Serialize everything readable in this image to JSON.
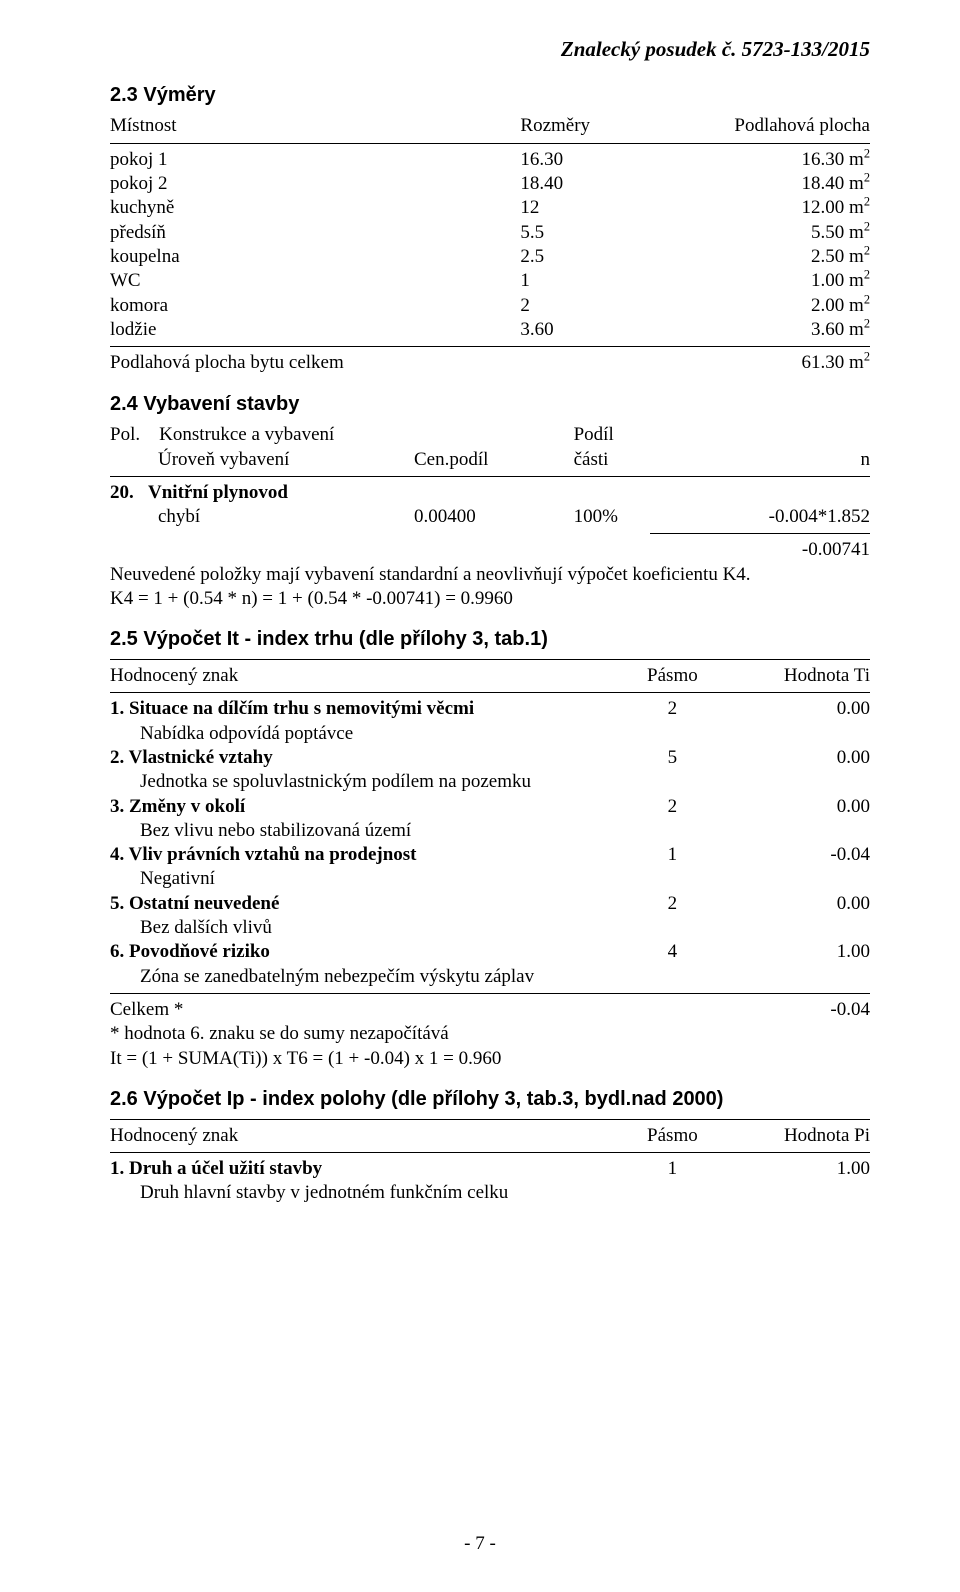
{
  "header": "Znalecký posudek č. 5723-133/2015",
  "s23": {
    "title": "2.3 Výměry",
    "columns": [
      "Místnost",
      "Rozměry",
      "Podlahová plocha"
    ],
    "rows": [
      {
        "name": "pokoj 1",
        "dim": "16.30",
        "area": "16.30 m",
        "exp": "2"
      },
      {
        "name": "pokoj 2",
        "dim": "18.40",
        "area": "18.40 m",
        "exp": "2"
      },
      {
        "name": "kuchyně",
        "dim": "12",
        "area": "12.00 m",
        "exp": "2"
      },
      {
        "name": "předsíň",
        "dim": "5.5",
        "area": "5.50 m",
        "exp": "2"
      },
      {
        "name": "koupelna",
        "dim": "2.5",
        "area": "2.50 m",
        "exp": "2"
      },
      {
        "name": "WC",
        "dim": "1",
        "area": "1.00 m",
        "exp": "2"
      },
      {
        "name": "komora",
        "dim": "2",
        "area": "2.00 m",
        "exp": "2"
      },
      {
        "name": "lodžie",
        "dim": "3.60",
        "area": "3.60 m",
        "exp": "2"
      }
    ],
    "total_label": "Podlahová plocha bytu celkem",
    "total_val": "61.30 m",
    "total_exp": "2"
  },
  "s24": {
    "title": "2.4 Vybavení stavby",
    "head_row1": {
      "c1": "Pol.",
      "c2": "Konstrukce a vybavení",
      "c3": "",
      "c4": "Podíl",
      "c5": ""
    },
    "head_row2": {
      "c1": "",
      "c2": "Úroveň vybavení",
      "c3": "Cen.podíl",
      "c4": "části",
      "c5": "n"
    },
    "item_no": "20.",
    "item_name": "Vnitřní plynovod",
    "item_sub": "chybí",
    "item_podil": "0.00400",
    "item_cast": "100%",
    "item_n": "-0.004*1.852",
    "sum_n": "-0.00741",
    "note1": "Neuvedené položky mají vybavení standardní a neovlivňují výpočet koeficientu K4.",
    "note2": "K4 = 1 + (0.54 * n) = 1 + (0.54 * -0.00741) = 0.9960"
  },
  "s25": {
    "title": "2.5 Výpočet It - index trhu (dle přílohy 3, tab.1)",
    "columns": [
      "Hodnocený znak",
      "Pásmo",
      "Hodnota Ti"
    ],
    "items": [
      {
        "num": "1.",
        "name": "Situace na dílčím trhu s nemovitými věcmi",
        "pasmo": "2",
        "val": "0.00",
        "sub": "Nabídka odpovídá poptávce"
      },
      {
        "num": "2.",
        "name": "Vlastnické vztahy",
        "pasmo": "5",
        "val": "0.00",
        "sub": "Jednotka se spoluvlastnickým podílem na pozemku"
      },
      {
        "num": "3.",
        "name": "Změny v okolí",
        "pasmo": "2",
        "val": "0.00",
        "sub": "Bez vlivu nebo stabilizovaná území"
      },
      {
        "num": "4.",
        "name": "Vliv právních vztahů na prodejnost",
        "pasmo": "1",
        "val": "-0.04",
        "sub": "Negativní"
      },
      {
        "num": "5.",
        "name": "Ostatní neuvedené",
        "pasmo": "2",
        "val": "0.00",
        "sub": "Bez dalších vlivů"
      },
      {
        "num": "6.",
        "name": "Povodňové riziko",
        "pasmo": "4",
        "val": "1.00",
        "sub": "Zóna se zanedbatelným nebezpečím výskytu záplav"
      }
    ],
    "total_label": "Celkem *",
    "total_val": "-0.04",
    "footnote": "* hodnota 6. znaku se do sumy nezapočítává",
    "formula": "It = (1 + SUMA(Ti)) x T6 = (1 + -0.04) x 1 = 0.960"
  },
  "s26": {
    "title": "2.6 Výpočet Ip - index polohy (dle přílohy 3, tab.3, bydl.nad 2000)",
    "columns": [
      "Hodnocený znak",
      "Pásmo",
      "Hodnota Pi"
    ],
    "items": [
      {
        "num": "1.",
        "name": "Druh a účel užití stavby",
        "pasmo": "1",
        "val": "1.00",
        "sub": "Druh hlavní stavby v jednotném funkčním celku"
      }
    ]
  },
  "page_number": "- 7 -"
}
